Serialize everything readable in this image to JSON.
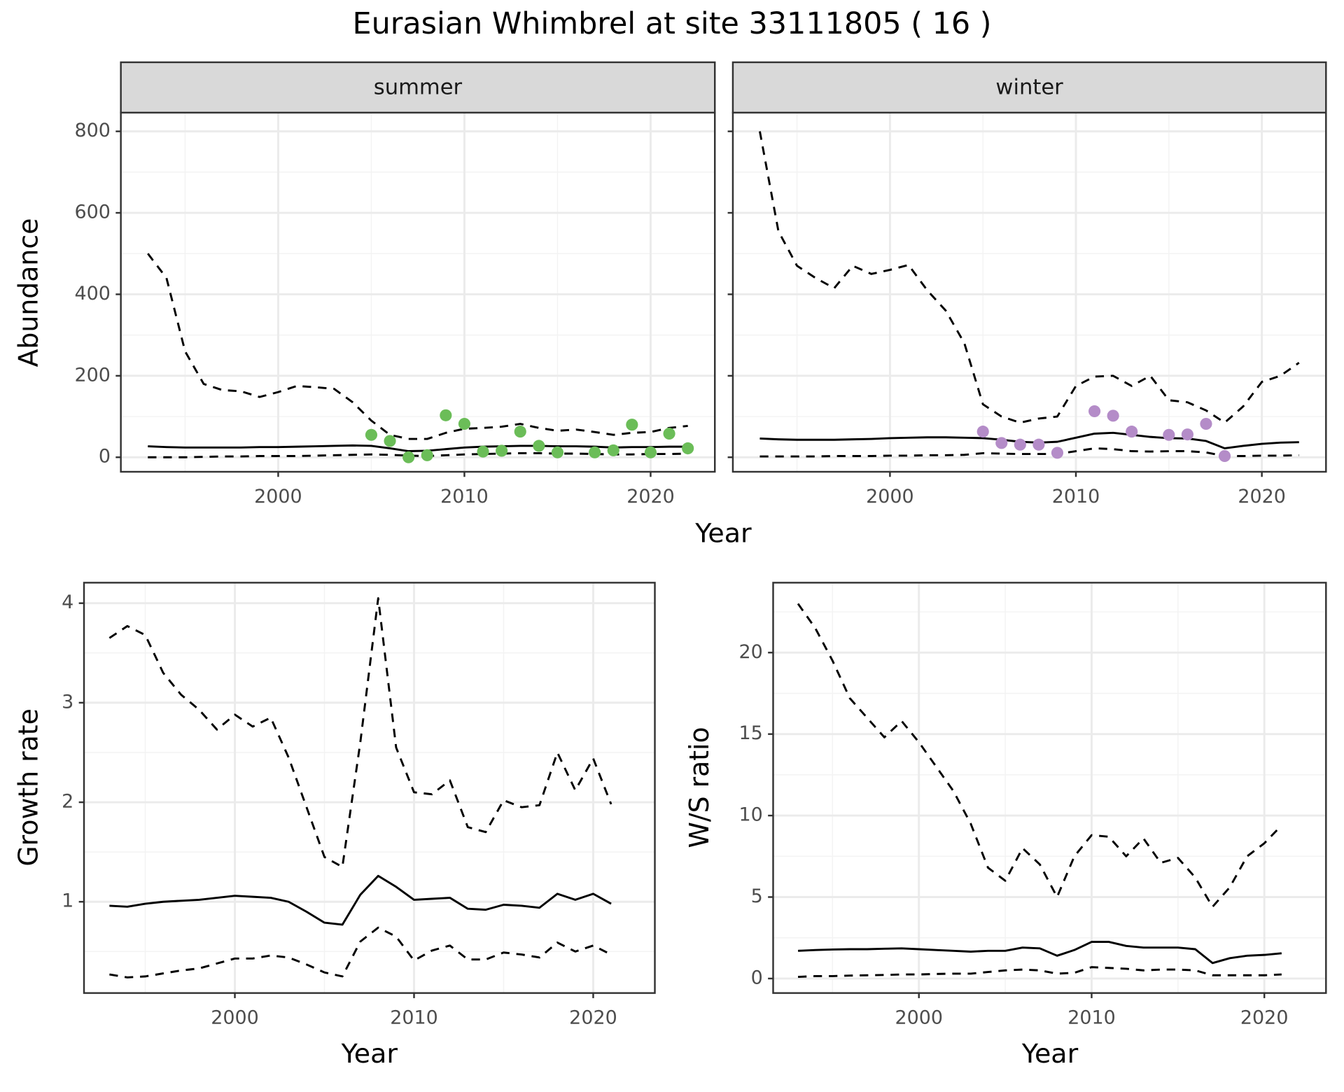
{
  "title": "Eurasian Whimbrel at site 33111805 ( 16 )",
  "chart_data": [
    {
      "type": "line",
      "strip": "summer",
      "ylabel": "Abundance",
      "xlabel": "Year",
      "x": [
        1993,
        1994,
        1995,
        1996,
        1997,
        1998,
        1999,
        2000,
        2001,
        2002,
        2003,
        2004,
        2005,
        2006,
        2007,
        2008,
        2009,
        2010,
        2011,
        2012,
        2013,
        2014,
        2015,
        2016,
        2017,
        2018,
        2019,
        2020,
        2021,
        2022
      ],
      "series": [
        {
          "color": "#000000",
          "dash": "solid",
          "values": [
            27,
            25,
            24,
            24,
            24,
            24,
            25,
            25,
            26,
            27,
            28,
            29,
            28,
            22,
            15,
            16,
            20,
            24,
            26,
            27,
            28,
            28,
            27,
            27,
            26,
            24,
            25,
            25,
            26,
            26
          ]
        },
        {
          "color": "#000000",
          "dash": "dashed",
          "values": [
            0,
            0,
            0,
            1,
            2,
            2,
            3,
            3,
            3,
            4,
            5,
            6,
            7,
            6,
            4,
            3,
            5,
            7,
            8,
            9,
            10,
            10,
            9,
            9,
            8,
            7,
            7,
            8,
            8,
            9
          ]
        },
        {
          "color": "#000000",
          "dash": "dashed",
          "values": [
            500,
            440,
            260,
            180,
            165,
            162,
            148,
            160,
            175,
            172,
            168,
            135,
            90,
            55,
            45,
            45,
            60,
            70,
            72,
            75,
            82,
            72,
            65,
            68,
            62,
            55,
            60,
            62,
            72,
            77
          ]
        }
      ],
      "points": {
        "color": "#6bbd58",
        "x": [
          2005,
          2006,
          2007,
          2008,
          2009,
          2010,
          2011,
          2012,
          2013,
          2014,
          2015,
          2017,
          2018,
          2019,
          2020,
          2021,
          2022
        ],
        "values": [
          55,
          40,
          0,
          5,
          103,
          82,
          14,
          16,
          63,
          28,
          12,
          12,
          17,
          80,
          12,
          58,
          22
        ]
      },
      "xlim": [
        1991.55,
        2023.45
      ],
      "ylim": [
        -35.6,
        846
      ],
      "xticks": [
        2000,
        2010,
        2020
      ],
      "yticks": [
        0,
        200,
        400,
        600,
        800
      ],
      "minor_xticks": [
        1995,
        2005,
        2015
      ],
      "minor_yticks": [
        100,
        300,
        500,
        700
      ],
      "grid": true,
      "y_tick_labels": true
    },
    {
      "type": "line",
      "strip": "winter",
      "x": [
        1993,
        1994,
        1995,
        1996,
        1997,
        1998,
        1999,
        2000,
        2001,
        2002,
        2003,
        2004,
        2005,
        2006,
        2007,
        2008,
        2009,
        2010,
        2011,
        2012,
        2013,
        2014,
        2015,
        2016,
        2017,
        2018,
        2019,
        2020,
        2021,
        2022
      ],
      "series": [
        {
          "color": "#000000",
          "dash": "solid",
          "values": [
            46,
            44,
            43,
            43,
            43,
            44,
            45,
            47,
            48,
            49,
            49,
            48,
            47,
            43,
            38,
            36,
            38,
            48,
            58,
            60,
            55,
            50,
            47,
            46,
            40,
            22,
            28,
            33,
            36,
            37
          ]
        },
        {
          "color": "#000000",
          "dash": "dashed",
          "values": [
            2,
            2,
            2,
            2,
            3,
            3,
            3,
            4,
            4,
            5,
            5,
            6,
            10,
            9,
            8,
            8,
            8,
            15,
            22,
            20,
            15,
            14,
            15,
            15,
            12,
            3,
            3,
            4,
            4,
            5
          ]
        },
        {
          "color": "#000000",
          "dash": "dashed",
          "values": [
            800,
            555,
            470,
            440,
            415,
            470,
            450,
            460,
            472,
            410,
            360,
            280,
            130,
            100,
            85,
            95,
            100,
            175,
            198,
            200,
            175,
            200,
            140,
            135,
            115,
            85,
            125,
            185,
            200,
            232
          ]
        }
      ],
      "points": {
        "color": "#b48cc8",
        "x": [
          2005,
          2006,
          2007,
          2008,
          2009,
          2011,
          2012,
          2013,
          2015,
          2016,
          2017,
          2018
        ],
        "values": [
          63,
          35,
          31,
          31,
          11,
          113,
          102,
          63,
          55,
          56,
          82,
          3
        ]
      },
      "xlim": [
        1991.55,
        2023.45
      ],
      "ylim": [
        -35.6,
        846
      ],
      "xticks": [
        2000,
        2010,
        2020
      ],
      "yticks": [
        0,
        200,
        400,
        600,
        800
      ],
      "minor_xticks": [
        1995,
        2005,
        2015
      ],
      "minor_yticks": [
        100,
        300,
        500,
        700
      ],
      "grid": true,
      "y_tick_labels": false
    },
    {
      "type": "line",
      "ylabel": "Growth rate",
      "xlabel": "Year",
      "x": [
        1993,
        1994,
        1995,
        1996,
        1997,
        1998,
        1999,
        2000,
        2001,
        2002,
        2003,
        2004,
        2005,
        2006,
        2007,
        2008,
        2009,
        2010,
        2011,
        2012,
        2013,
        2014,
        2015,
        2016,
        2017,
        2018,
        2019,
        2020,
        2021
      ],
      "series": [
        {
          "color": "#000000",
          "dash": "solid",
          "values": [
            0.96,
            0.95,
            0.98,
            1.0,
            1.01,
            1.02,
            1.04,
            1.06,
            1.05,
            1.04,
            1.0,
            0.9,
            0.79,
            0.77,
            1.07,
            1.26,
            1.15,
            1.02,
            1.03,
            1.04,
            0.93,
            0.92,
            0.97,
            0.96,
            0.94,
            1.08,
            1.02,
            1.08,
            0.98
          ]
        },
        {
          "color": "#000000",
          "dash": "dashed",
          "values": [
            0.27,
            0.24,
            0.25,
            0.28,
            0.31,
            0.33,
            0.38,
            0.43,
            0.43,
            0.46,
            0.44,
            0.37,
            0.29,
            0.25,
            0.6,
            0.74,
            0.65,
            0.41,
            0.51,
            0.56,
            0.42,
            0.42,
            0.49,
            0.47,
            0.44,
            0.59,
            0.5,
            0.56,
            0.47
          ]
        },
        {
          "color": "#000000",
          "dash": "dashed",
          "values": [
            3.65,
            3.77,
            3.68,
            3.3,
            3.08,
            2.93,
            2.73,
            2.88,
            2.76,
            2.85,
            2.45,
            1.95,
            1.45,
            1.35,
            2.6,
            4.05,
            2.55,
            2.1,
            2.08,
            2.22,
            1.75,
            1.7,
            2.02,
            1.95,
            1.97,
            2.5,
            2.12,
            2.44,
            1.98
          ]
        }
      ],
      "xlim": [
        1991.58,
        2023.44
      ],
      "ylim": [
        0.083,
        4.206
      ],
      "xticks": [
        2000,
        2010,
        2020
      ],
      "yticks": [
        1,
        2,
        3,
        4
      ],
      "minor_xticks": [
        1995,
        2005,
        2015
      ],
      "minor_yticks": [
        0.5,
        1.5,
        2.5,
        3.5
      ],
      "grid": true,
      "y_tick_labels": true
    },
    {
      "type": "line",
      "ylabel": "W/S ratio",
      "xlabel": "Year",
      "x": [
        1993,
        1994,
        1995,
        1996,
        1997,
        1998,
        1999,
        2000,
        2001,
        2002,
        2003,
        2004,
        2005,
        2006,
        2007,
        2008,
        2009,
        2010,
        2011,
        2012,
        2013,
        2014,
        2015,
        2016,
        2017,
        2018,
        2019,
        2020,
        2021
      ],
      "series": [
        {
          "color": "#000000",
          "dash": "solid",
          "values": [
            1.7,
            1.75,
            1.78,
            1.8,
            1.8,
            1.83,
            1.85,
            1.8,
            1.75,
            1.7,
            1.65,
            1.7,
            1.7,
            1.9,
            1.85,
            1.4,
            1.75,
            2.25,
            2.25,
            2.0,
            1.9,
            1.9,
            1.9,
            1.8,
            0.95,
            1.25,
            1.4,
            1.45,
            1.55
          ]
        },
        {
          "color": "#000000",
          "dash": "dashed",
          "values": [
            0.1,
            0.15,
            0.15,
            0.18,
            0.2,
            0.22,
            0.25,
            0.25,
            0.28,
            0.3,
            0.3,
            0.4,
            0.5,
            0.55,
            0.5,
            0.3,
            0.35,
            0.7,
            0.65,
            0.6,
            0.5,
            0.55,
            0.55,
            0.5,
            0.2,
            0.2,
            0.2,
            0.2,
            0.25
          ]
        },
        {
          "color": "#000000",
          "dash": "dashed",
          "values": [
            23.0,
            21.5,
            19.5,
            17.2,
            16.0,
            14.8,
            15.8,
            14.5,
            13.0,
            11.5,
            9.5,
            6.8,
            6.0,
            8.0,
            7.0,
            5.0,
            7.5,
            8.8,
            8.7,
            7.5,
            8.6,
            7.1,
            7.4,
            6.2,
            4.4,
            5.6,
            7.5,
            8.3,
            9.4
          ]
        }
      ],
      "xlim": [
        1991.56,
        2023.57
      ],
      "ylim": [
        -0.89,
        24.29
      ],
      "xticks": [
        2000,
        2010,
        2020
      ],
      "yticks": [
        0,
        5,
        10,
        15,
        20
      ],
      "minor_xticks": [
        1995,
        2005,
        2015
      ],
      "minor_yticks": [
        2.5,
        7.5,
        12.5,
        17.5,
        22.5
      ],
      "grid": true,
      "y_tick_labels": true
    }
  ]
}
